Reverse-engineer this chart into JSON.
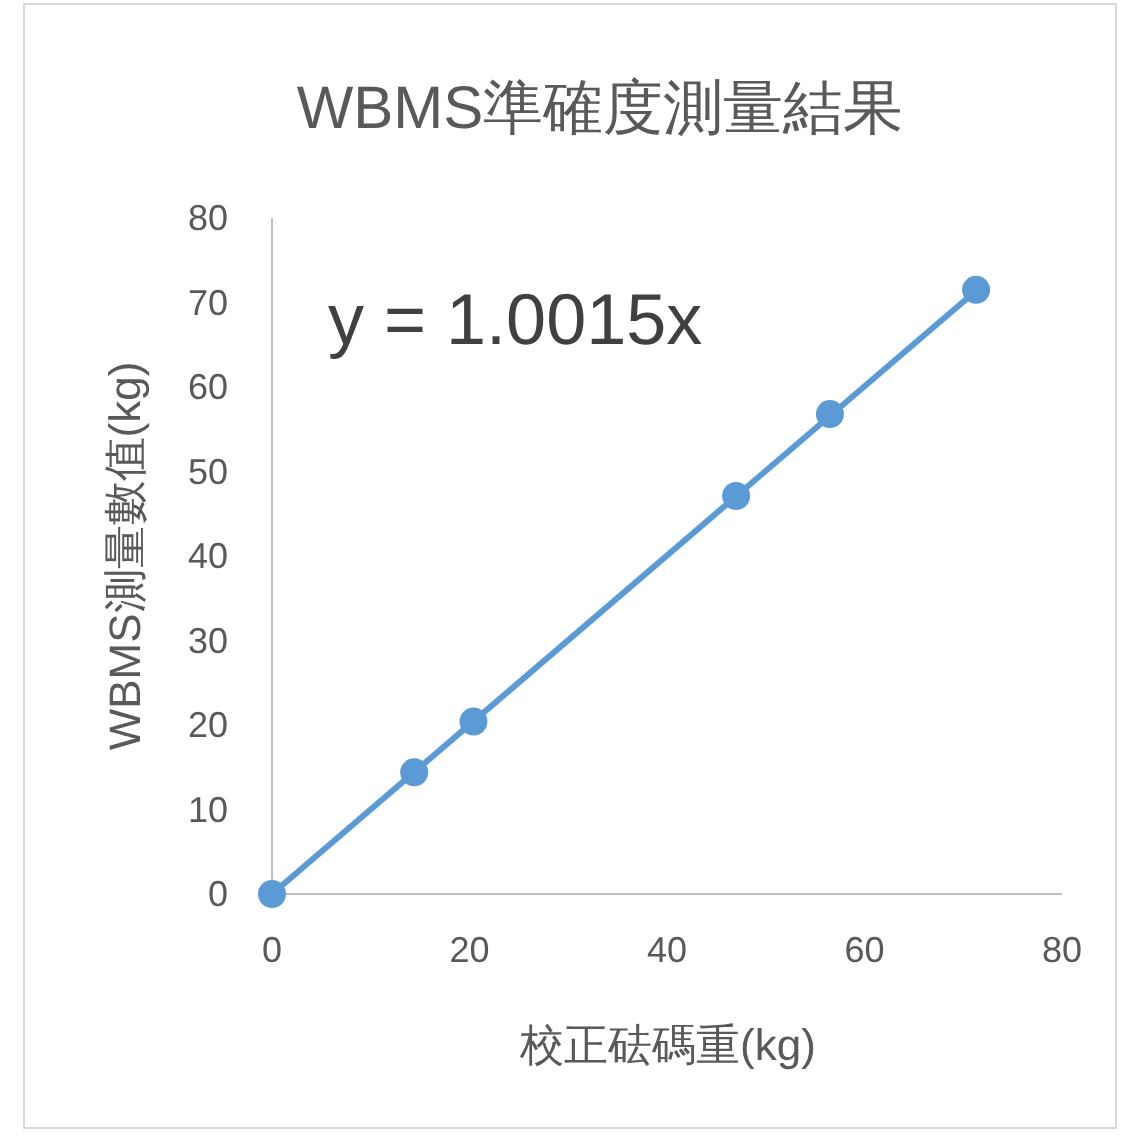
{
  "chart_data": {
    "type": "scatter",
    "title": "WBMS準確度測量結果",
    "xlabel": "校正砝碼重(kg)",
    "ylabel": "WBMS測量數值(kg)",
    "annotations": [
      "y = 1.0015x"
    ],
    "xlim": [
      0,
      80
    ],
    "xticks": [
      0,
      20,
      40,
      60,
      80
    ],
    "ylim": [
      0,
      80
    ],
    "yticks": [
      0,
      10,
      20,
      30,
      40,
      50,
      60,
      70,
      80
    ],
    "grid": false,
    "series": [
      {
        "marker": "circle",
        "color": "#5b9bd5",
        "x": [
          0,
          14.4,
          20.4,
          47.0,
          56.5,
          71.3
        ],
        "values": [
          0,
          14.4,
          20.4,
          47.1,
          56.8,
          71.5
        ]
      },
      {
        "type": "line",
        "color": "#5b9bd5",
        "line_style": "solid",
        "x": [
          0,
          71.3
        ],
        "values": [
          0,
          71.4
        ]
      }
    ]
  }
}
